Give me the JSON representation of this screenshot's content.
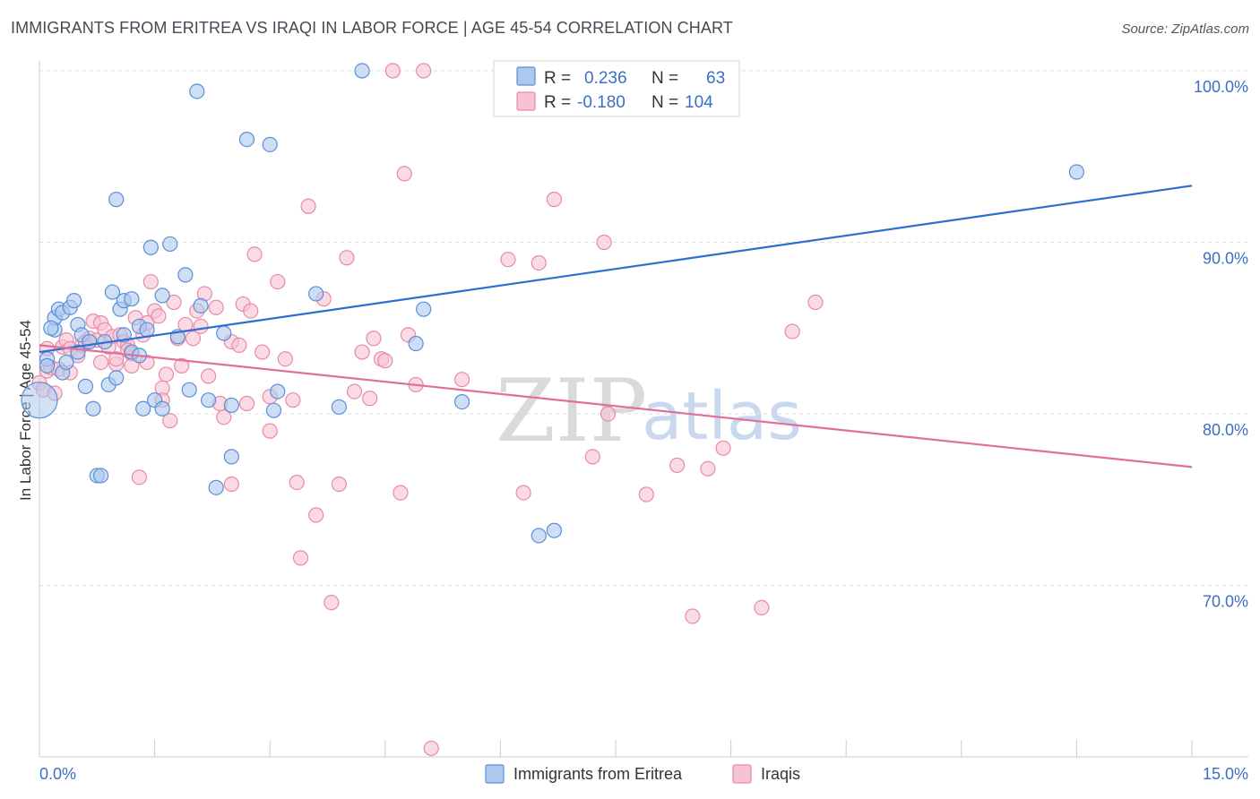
{
  "title": "IMMIGRANTS FROM ERITREA VS IRAQI IN LABOR FORCE | AGE 45-54 CORRELATION CHART",
  "source": "Source: ZipAtlas.com",
  "watermark": {
    "zip": "ZIP",
    "atlas": "atlas"
  },
  "legend": {
    "r_label": "R =",
    "n_label": "N =",
    "rows": [
      {
        "r": "0.236",
        "n": "63"
      },
      {
        "r": "-0.180",
        "n": "104"
      }
    ]
  },
  "colors": {
    "blue_fill": "#adc8ef",
    "blue_stroke": "#5a8fd6",
    "blue_line": "#2c6fd1",
    "pink_fill": "#f7c3d3",
    "pink_stroke": "#e889a9",
    "pink_line": "#e0709a",
    "grid": "#dcdcdc",
    "axis": "#cccccc"
  },
  "chart_data": {
    "type": "scatter",
    "title": "IMMIGRANTS FROM ERITREA VS IRAQI IN LABOR FORCE | AGE 45-54 CORRELATION CHART",
    "xlabel": "",
    "ylabel": "In Labor Force | Age 45-54",
    "xlim": [
      0,
      15
    ],
    "ylim": [
      60,
      102
    ],
    "x_tick_labels": [
      "0.0%",
      "15.0%"
    ],
    "y_ticks": [
      70,
      80,
      90,
      100
    ],
    "y_tick_labels": [
      "70.0%",
      "80.0%",
      "90.0%",
      "100.0%"
    ],
    "grid": true,
    "legend_position": "top-center",
    "series": [
      {
        "name": "Immigrants from Eritrea",
        "color": "blue",
        "trend": {
          "x": [
            0,
            15
          ],
          "y": [
            83.6,
            93.3
          ]
        },
        "points": [
          [
            0.0,
            80.8
          ],
          [
            0.1,
            83.2
          ],
          [
            0.1,
            82.8
          ],
          [
            0.2,
            84.9
          ],
          [
            0.2,
            85.6
          ],
          [
            0.25,
            86.1
          ],
          [
            0.3,
            85.9
          ],
          [
            0.3,
            82.4
          ],
          [
            0.35,
            83.0
          ],
          [
            0.4,
            86.2
          ],
          [
            0.45,
            86.6
          ],
          [
            0.5,
            85.2
          ],
          [
            0.5,
            83.6
          ],
          [
            0.55,
            84.6
          ],
          [
            0.6,
            81.6
          ],
          [
            0.65,
            84.2
          ],
          [
            0.7,
            80.3
          ],
          [
            0.75,
            76.4
          ],
          [
            0.8,
            76.4
          ],
          [
            0.85,
            84.2
          ],
          [
            0.9,
            81.7
          ],
          [
            0.95,
            87.1
          ],
          [
            1.0,
            82.1
          ],
          [
            1.0,
            92.5
          ],
          [
            1.05,
            86.1
          ],
          [
            1.1,
            84.6
          ],
          [
            1.1,
            86.6
          ],
          [
            1.2,
            83.6
          ],
          [
            1.2,
            86.7
          ],
          [
            1.3,
            85.1
          ],
          [
            1.3,
            83.4
          ],
          [
            1.35,
            80.3
          ],
          [
            1.4,
            84.9
          ],
          [
            1.45,
            89.7
          ],
          [
            1.5,
            80.8
          ],
          [
            1.6,
            86.9
          ],
          [
            1.6,
            80.3
          ],
          [
            1.7,
            89.9
          ],
          [
            1.8,
            84.5
          ],
          [
            1.9,
            88.1
          ],
          [
            1.95,
            81.4
          ],
          [
            2.05,
            98.8
          ],
          [
            2.1,
            86.3
          ],
          [
            2.2,
            80.8
          ],
          [
            2.3,
            75.7
          ],
          [
            2.4,
            84.7
          ],
          [
            2.5,
            80.5
          ],
          [
            2.5,
            77.5
          ],
          [
            2.7,
            96.0
          ],
          [
            3.0,
            95.7
          ],
          [
            3.05,
            80.2
          ],
          [
            3.1,
            81.3
          ],
          [
            3.6,
            87.0
          ],
          [
            3.9,
            80.4
          ],
          [
            4.2,
            100.0
          ],
          [
            4.9,
            84.1
          ],
          [
            5.0,
            86.1
          ],
          [
            5.5,
            80.7
          ],
          [
            6.5,
            72.9
          ],
          [
            6.7,
            73.2
          ],
          [
            7.5,
            97.8
          ],
          [
            13.5,
            94.1
          ],
          [
            0.15,
            85.0
          ]
        ]
      },
      {
        "name": "Iraqis",
        "color": "pink",
        "trend": {
          "x": [
            0,
            15
          ],
          "y": [
            84.0,
            76.9
          ]
        },
        "points": [
          [
            0.0,
            81.8
          ],
          [
            0.05,
            81.4
          ],
          [
            0.1,
            82.5
          ],
          [
            0.1,
            83.8
          ],
          [
            0.15,
            82.7
          ],
          [
            0.2,
            81.2
          ],
          [
            0.25,
            82.6
          ],
          [
            0.3,
            83.9
          ],
          [
            0.35,
            84.3
          ],
          [
            0.4,
            82.4
          ],
          [
            0.4,
            83.8
          ],
          [
            0.5,
            83.4
          ],
          [
            0.55,
            84.0
          ],
          [
            0.6,
            84.2
          ],
          [
            0.65,
            84.4
          ],
          [
            0.7,
            85.4
          ],
          [
            0.75,
            84.3
          ],
          [
            0.8,
            85.3
          ],
          [
            0.8,
            83.0
          ],
          [
            0.85,
            84.9
          ],
          [
            0.9,
            83.9
          ],
          [
            0.95,
            84.5
          ],
          [
            1.0,
            82.9
          ],
          [
            1.0,
            83.2
          ],
          [
            1.05,
            84.6
          ],
          [
            1.1,
            84.2
          ],
          [
            1.15,
            84.0
          ],
          [
            1.15,
            83.7
          ],
          [
            1.2,
            83.5
          ],
          [
            1.2,
            82.8
          ],
          [
            1.25,
            85.6
          ],
          [
            1.3,
            76.3
          ],
          [
            1.35,
            84.6
          ],
          [
            1.4,
            85.3
          ],
          [
            1.4,
            83.0
          ],
          [
            1.45,
            87.7
          ],
          [
            1.5,
            86.0
          ],
          [
            1.55,
            85.7
          ],
          [
            1.6,
            81.5
          ],
          [
            1.6,
            80.8
          ],
          [
            1.65,
            82.3
          ],
          [
            1.7,
            79.6
          ],
          [
            1.75,
            86.5
          ],
          [
            1.8,
            84.4
          ],
          [
            1.85,
            82.8
          ],
          [
            1.9,
            85.2
          ],
          [
            2.0,
            84.4
          ],
          [
            2.05,
            86.0
          ],
          [
            2.1,
            85.1
          ],
          [
            2.15,
            87.0
          ],
          [
            2.2,
            82.2
          ],
          [
            2.3,
            86.2
          ],
          [
            2.35,
            80.6
          ],
          [
            2.4,
            79.8
          ],
          [
            2.5,
            84.2
          ],
          [
            2.5,
            75.9
          ],
          [
            2.6,
            84.0
          ],
          [
            2.65,
            86.4
          ],
          [
            2.7,
            80.6
          ],
          [
            2.75,
            86.0
          ],
          [
            2.8,
            89.3
          ],
          [
            2.9,
            83.6
          ],
          [
            3.0,
            81.0
          ],
          [
            3.0,
            79.0
          ],
          [
            3.1,
            87.7
          ],
          [
            3.2,
            83.2
          ],
          [
            3.3,
            80.8
          ],
          [
            3.4,
            71.6
          ],
          [
            3.5,
            92.1
          ],
          [
            3.6,
            74.1
          ],
          [
            3.7,
            86.7
          ],
          [
            3.8,
            69.0
          ],
          [
            3.9,
            75.9
          ],
          [
            4.0,
            89.1
          ],
          [
            4.1,
            81.3
          ],
          [
            4.2,
            83.6
          ],
          [
            4.3,
            80.9
          ],
          [
            4.35,
            84.4
          ],
          [
            4.45,
            83.2
          ],
          [
            4.5,
            83.1
          ],
          [
            4.6,
            100.0
          ],
          [
            4.7,
            75.4
          ],
          [
            4.75,
            94.0
          ],
          [
            4.8,
            84.6
          ],
          [
            4.9,
            81.7
          ],
          [
            5.0,
            100.0
          ],
          [
            5.1,
            60.5
          ],
          [
            5.5,
            82.0
          ],
          [
            6.1,
            89.0
          ],
          [
            6.3,
            75.4
          ],
          [
            6.5,
            88.8
          ],
          [
            6.7,
            92.5
          ],
          [
            7.2,
            77.5
          ],
          [
            7.35,
            90.0
          ],
          [
            7.4,
            80.0
          ],
          [
            7.9,
            75.3
          ],
          [
            8.3,
            77.0
          ],
          [
            8.5,
            68.2
          ],
          [
            8.7,
            76.8
          ],
          [
            8.9,
            78.0
          ],
          [
            9.4,
            68.7
          ],
          [
            9.8,
            84.8
          ],
          [
            10.1,
            86.5
          ],
          [
            3.35,
            76.0
          ]
        ]
      }
    ]
  },
  "bottom_legend": [
    {
      "label": "Immigrants from Eritrea",
      "color": "blue"
    },
    {
      "label": "Iraqis",
      "color": "pink"
    }
  ]
}
